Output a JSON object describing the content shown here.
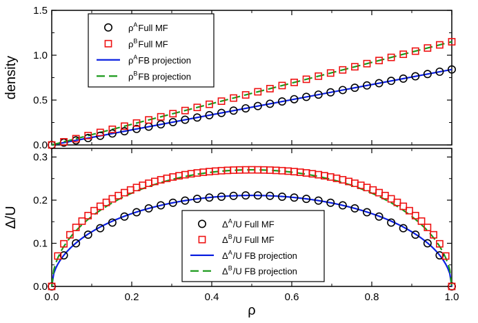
{
  "chart_data": [
    {
      "type": "line",
      "id": "top",
      "xlim": [
        0.0,
        1.0
      ],
      "ylim": [
        0.0,
        1.5
      ],
      "xlabel": "",
      "ylabel": "density",
      "x_ticks": [
        "0.0",
        "0.2",
        "0.4",
        "0.6",
        "0.8",
        "1.0"
      ],
      "y_ticks": [
        "0.0",
        "0.5",
        "1.0",
        "1.5"
      ],
      "show_x_tick_labels": false,
      "grid": false,
      "legend_position": "top-left",
      "series": [
        {
          "name": "Full MF",
          "base": "ρ",
          "sup": "A",
          "kind": "markers",
          "marker": "circle",
          "color": "#000000",
          "x": [
            0,
            0.0303,
            0.0606,
            0.0909,
            0.1212,
            0.1515,
            0.1818,
            0.2121,
            0.2424,
            0.2727,
            0.303,
            0.3333,
            0.3636,
            0.3939,
            0.4242,
            0.4545,
            0.4848,
            0.5152,
            0.5455,
            0.5758,
            0.6061,
            0.6364,
            0.6667,
            0.697,
            0.7273,
            0.7576,
            0.7879,
            0.8182,
            0.8485,
            0.8788,
            0.9091,
            0.9394,
            0.9697,
            1.0
          ],
          "y": [
            0,
            0.0255,
            0.051,
            0.0765,
            0.102,
            0.1275,
            0.153,
            0.1785,
            0.204,
            0.2295,
            0.255,
            0.2805,
            0.306,
            0.3315,
            0.357,
            0.3825,
            0.408,
            0.4335,
            0.459,
            0.4845,
            0.51,
            0.5355,
            0.561,
            0.5865,
            0.612,
            0.6375,
            0.663,
            0.6885,
            0.714,
            0.7395,
            0.765,
            0.7905,
            0.816,
            0.841
          ]
        },
        {
          "name": "Full MF",
          "base": "ρ",
          "sup": "B",
          "kind": "markers",
          "marker": "square",
          "color": "#ee1111",
          "x": [
            0,
            0.0303,
            0.0606,
            0.0909,
            0.1212,
            0.1515,
            0.1818,
            0.2121,
            0.2424,
            0.2727,
            0.303,
            0.3333,
            0.3636,
            0.3939,
            0.4242,
            0.4545,
            0.4848,
            0.5152,
            0.5455,
            0.5758,
            0.6061,
            0.6364,
            0.6667,
            0.697,
            0.7273,
            0.7576,
            0.7879,
            0.8182,
            0.8485,
            0.8788,
            0.9091,
            0.9394,
            0.9697,
            1.0
          ],
          "y": [
            0,
            0.0348,
            0.0697,
            0.1045,
            0.1394,
            0.1742,
            0.2091,
            0.2439,
            0.2788,
            0.3136,
            0.3485,
            0.3833,
            0.4182,
            0.453,
            0.4879,
            0.5227,
            0.5576,
            0.5924,
            0.6273,
            0.6621,
            0.697,
            0.7318,
            0.7667,
            0.8015,
            0.8364,
            0.8712,
            0.9061,
            0.9409,
            0.9758,
            1.0106,
            1.0455,
            1.0803,
            1.1152,
            1.15
          ]
        },
        {
          "name": "FB projection",
          "base": "ρ",
          "sup": "A",
          "kind": "line",
          "dash": "solid",
          "color": "#0a1fe0",
          "x": [
            0,
            1.0
          ],
          "y": [
            0,
            0.841
          ]
        },
        {
          "name": "FB projection",
          "base": "ρ",
          "sup": "B",
          "kind": "line",
          "dash": "dashed",
          "color": "#1b9a1b",
          "x": [
            0,
            1.0
          ],
          "y": [
            0,
            1.15
          ]
        }
      ]
    },
    {
      "type": "line",
      "id": "bottom",
      "xlim": [
        0.0,
        1.0
      ],
      "ylim": [
        0.0,
        0.32
      ],
      "xlabel": "ρ",
      "ylabel": "Δ/U",
      "x_ticks": [
        "0.0",
        "0.2",
        "0.4",
        "0.6",
        "0.8",
        "1.0"
      ],
      "y_ticks": [
        "0.0",
        "0.1",
        "0.2",
        "0.3"
      ],
      "show_x_tick_labels": true,
      "grid": false,
      "legend_position": "bottom-right",
      "series": [
        {
          "name": "/U Full MF",
          "base": "Δ",
          "sup": "A",
          "kind": "markers",
          "marker": "circle",
          "color": "#000000",
          "x": [
            0,
            0.0303,
            0.0606,
            0.0909,
            0.1212,
            0.1515,
            0.1818,
            0.2121,
            0.2424,
            0.2727,
            0.303,
            0.3333,
            0.3636,
            0.3939,
            0.4242,
            0.4545,
            0.4848,
            0.5152,
            0.5455,
            0.5758,
            0.6061,
            0.6364,
            0.6667,
            0.697,
            0.7273,
            0.7576,
            0.7879,
            0.8182,
            0.8485,
            0.8788,
            0.9091,
            0.9394,
            0.9697,
            1.0
          ],
          "y": [
            0,
            0.072,
            0.1,
            0.12,
            0.135,
            0.148,
            0.162,
            0.172,
            0.181,
            0.188,
            0.194,
            0.199,
            0.203,
            0.206,
            0.208,
            0.21,
            0.211,
            0.211,
            0.21,
            0.208,
            0.206,
            0.203,
            0.199,
            0.194,
            0.188,
            0.181,
            0.172,
            0.162,
            0.148,
            0.135,
            0.12,
            0.1,
            0.072,
            0
          ]
        },
        {
          "name": "/U Full MF",
          "base": "Δ",
          "sup": "B",
          "kind": "markers",
          "marker": "square",
          "color": "#ee1111",
          "x": [
            0,
            0.0152,
            0.0303,
            0.0455,
            0.0606,
            0.0758,
            0.0909,
            0.1061,
            0.1212,
            0.1364,
            0.1515,
            0.1667,
            0.1818,
            0.197,
            0.2121,
            0.2273,
            0.2424,
            0.2576,
            0.2727,
            0.2879,
            0.303,
            0.3182,
            0.3333,
            0.3485,
            0.3636,
            0.3788,
            0.3939,
            0.4091,
            0.4242,
            0.4394,
            0.4545,
            0.4697,
            0.4848,
            0.5,
            0.5152,
            0.5303,
            0.5455,
            0.5606,
            0.5758,
            0.5909,
            0.6061,
            0.6212,
            0.6364,
            0.6515,
            0.6667,
            0.6818,
            0.697,
            0.7121,
            0.7273,
            0.7424,
            0.7576,
            0.7727,
            0.7879,
            0.803,
            0.8182,
            0.8333,
            0.8485,
            0.8636,
            0.8788,
            0.8939,
            0.9091,
            0.9242,
            0.9394,
            0.9545,
            0.9697,
            0.9848,
            1.0
          ],
          "y": [
            0,
            0.0705,
            0.0988,
            0.1197,
            0.1368,
            0.1514,
            0.1642,
            0.1756,
            0.1857,
            0.1948,
            0.2031,
            0.2106,
            0.2174,
            0.2236,
            0.2293,
            0.2344,
            0.2391,
            0.2433,
            0.2472,
            0.2506,
            0.2537,
            0.2565,
            0.259,
            0.2611,
            0.2631,
            0.2647,
            0.2661,
            0.2673,
            0.2683,
            0.269,
            0.2696,
            0.27,
            0.2702,
            0.2703,
            0.2702,
            0.27,
            0.2696,
            0.269,
            0.2683,
            0.2673,
            0.2661,
            0.2647,
            0.2631,
            0.2611,
            0.259,
            0.2565,
            0.2537,
            0.2506,
            0.2472,
            0.2433,
            0.2391,
            0.2344,
            0.2293,
            0.2236,
            0.2174,
            0.2106,
            0.2031,
            0.1948,
            0.1857,
            0.1756,
            0.1642,
            0.1514,
            0.1368,
            0.1197,
            0.0988,
            0.0705,
            0
          ]
        },
        {
          "name": "/U FB projection",
          "base": "Δ",
          "sup": "A",
          "kind": "line",
          "dash": "solid",
          "color": "#0a1fe0",
          "curve": "semicircle",
          "amplitude": 0.211
        },
        {
          "name": "/U FB projection",
          "base": "Δ",
          "sup": "B",
          "kind": "line",
          "dash": "dashed",
          "color": "#1b9a1b",
          "curve": "semicircle",
          "amplitude": 0.2703
        }
      ]
    }
  ]
}
